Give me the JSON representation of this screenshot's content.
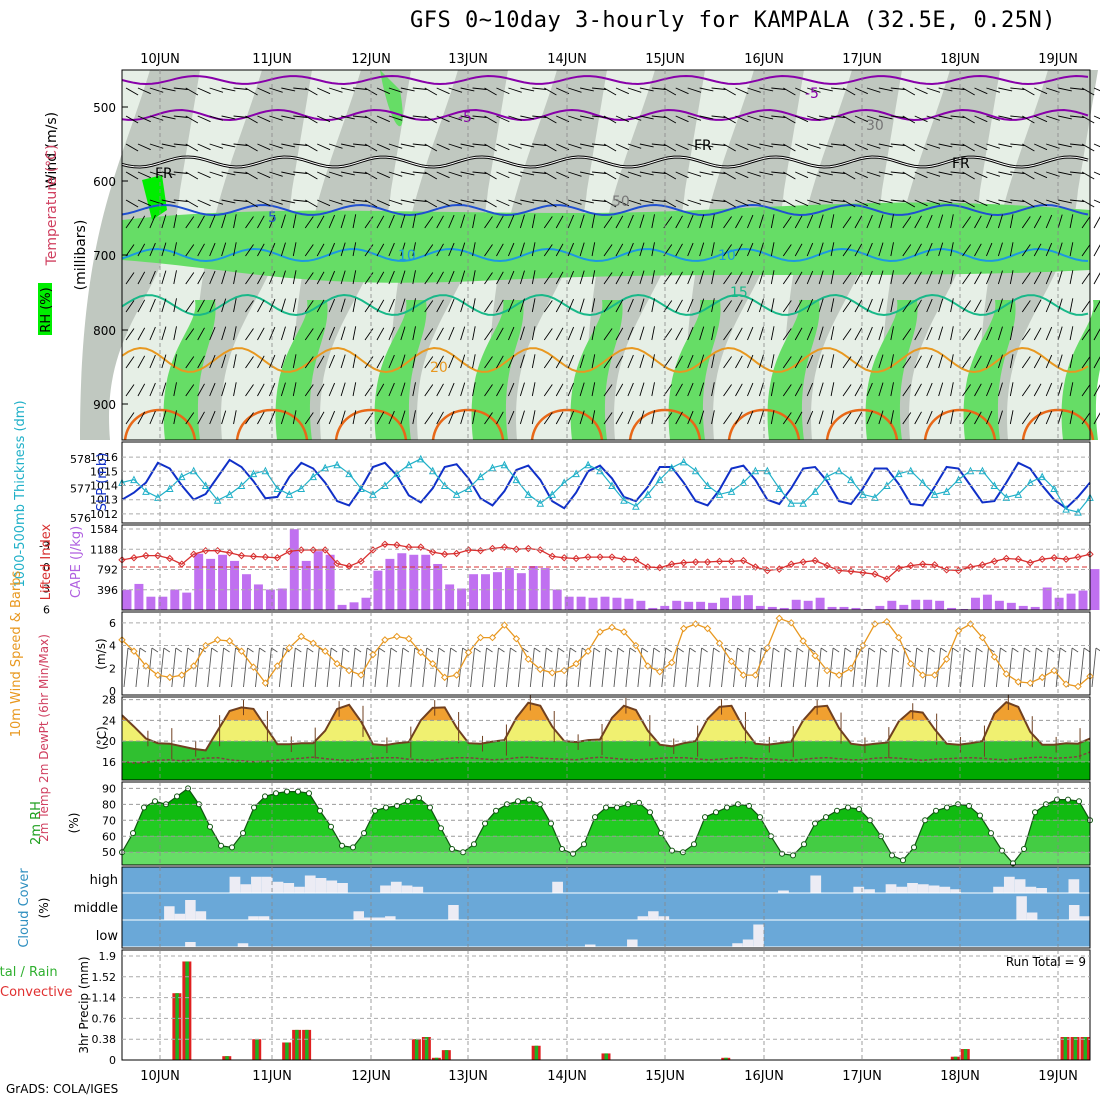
{
  "title": "GFS 0~10day 3-hourly for KAMPALA (32.5E, 0.25N)",
  "credit": "GrADS: COLA/IGES",
  "days": [
    "10JUN",
    "11JUN",
    "12JUN",
    "13JUN",
    "14JUN",
    "15JUN",
    "16JUN",
    "17JUN",
    "18JUN",
    "19JUN"
  ],
  "colors": {
    "rh_dark": "#00ee00",
    "rh_mid": "#66dd66",
    "rh_gray": "#c0c8c0",
    "rh_light": "#e6efe6",
    "temp_m5": "#8800aa",
    "temp_fr": "#000000",
    "temp_p5": "#2050d0",
    "temp_p10": "#1c98e0",
    "temp_p15": "#18b888",
    "temp_p20": "#e89820",
    "temp_p25": "#e86818",
    "slp": "#1030c8",
    "thickness": "#20b0c8",
    "cape_bar": "#c070f0",
    "lifted": "#d83030",
    "wind": "#e89820",
    "barb": "#555555",
    "cloud_bg": "#6aa8d8",
    "cloud_bar": "#ececf4",
    "precip_total": "#e02020",
    "precip_conv": "#20b020",
    "hot": "#f0a030",
    "warm": "#f0f070",
    "rh2m_dark": "#00aa00",
    "rh2m_light": "#66ee66"
  },
  "panels": {
    "upper": {
      "ylabel_wind": "Wind (m/s)",
      "ylabel_temp": "Temperature (°C)",
      "ylabel_rh": "RH (%)",
      "ylabel_axis": "(millibars)",
      "yticks": [
        "500",
        "600",
        "700",
        "800",
        "900"
      ],
      "contour_labels": [
        "-5",
        "-5",
        "FR",
        "FR",
        "FR",
        "-5",
        "5",
        "10",
        "10",
        "15",
        "20",
        "30",
        "50"
      ]
    },
    "slp": {
      "ylabel_thick": "1000-500mb Thickness (dm)",
      "ylabel_slp": "SLP (mb)",
      "left_ticks": [
        "578",
        "577",
        "576"
      ],
      "right_ticks": [
        "1016",
        "1015",
        "1014",
        "1013",
        "1012"
      ]
    },
    "cape": {
      "ylabel_li": "Lifted Index",
      "ylabel_cape": "CAPE (J/kg)",
      "left_ticks": [
        "-3",
        "0",
        "3",
        "6"
      ],
      "right_ticks": [
        "1584",
        "1188",
        "792",
        "396"
      ]
    },
    "wind": {
      "ylabel": "10m Wind Speed & Barbs",
      "unit": "(m/s)",
      "ticks": [
        "6",
        "4",
        "2",
        "0"
      ]
    },
    "temp": {
      "ylabel": "2m Temp 2m DewPt (6hr Min/Max)",
      "unit": "(°C)",
      "ticks": [
        "28",
        "24",
        "20",
        "16"
      ]
    },
    "rh": {
      "ylabel": "2m RH",
      "unit": "(%)",
      "ticks": [
        "90",
        "80",
        "70",
        "60",
        "50"
      ]
    },
    "cloud": {
      "ylabel": "Cloud Cover",
      "unit": "(%)",
      "levels": [
        "high",
        "middle",
        "low"
      ]
    },
    "precip": {
      "ylabel": "3hr Precip (mm)",
      "legend1": "Total / Rain",
      "legend2": "Convective",
      "ticks": [
        "1.9",
        "1.52",
        "1.14",
        "0.76",
        "0.38",
        "0"
      ],
      "run_total": "Run Total = 9"
    }
  },
  "chart_data": [
    {
      "type": "line",
      "name": "SLP (mb)",
      "x_unit": "3-hourly step from 10JUN 00Z",
      "values": [
        1013,
        1013.5,
        1014.2,
        1015.6,
        1015.2,
        1014,
        1013,
        1013.4,
        1014.6,
        1015.8,
        1015.3,
        1014.3,
        1013.1,
        1013.2,
        1014.6,
        1015.6,
        1015.2,
        1014.2,
        1012.9,
        1012.6,
        1013.8,
        1015.3,
        1015.6,
        1014.7,
        1013.3,
        1012.8,
        1013.8,
        1015.3,
        1015.5,
        1014.5,
        1013.1,
        1012.6,
        1013.6,
        1015.1,
        1015.4,
        1014.4,
        1012.9,
        1012.4,
        1013.5,
        1015,
        1015.4,
        1014.5,
        1013.2,
        1012.9,
        1013.9,
        1015.3,
        1015.3,
        1014.2,
        1012.9,
        1012.6,
        1013.7,
        1015.2,
        1015.4,
        1014.4,
        1013,
        1012.7,
        1013.8,
        1015.2,
        1015.3,
        1014.3,
        1012.9,
        1012.7,
        1013.8,
        1015.2,
        1015.2,
        1014.1,
        1012.7,
        1012.6,
        1013.9,
        1015.3,
        1015.2,
        1014,
        1012.8,
        1012.9,
        1014.2,
        1015.6,
        1015.2,
        1014,
        1013,
        1012.4,
        1013.2,
        1014.2
      ]
    },
    {
      "type": "line",
      "name": "1000-500mb Thickness (dm)",
      "values": [
        577.2,
        577.3,
        576.9,
        576.7,
        577,
        577.4,
        577.6,
        577.1,
        576.6,
        576.8,
        577.1,
        577.5,
        577.6,
        577,
        576.8,
        577,
        577.4,
        577.7,
        577.8,
        577.5,
        577,
        576.8,
        577.1,
        577.5,
        577.8,
        578,
        577.6,
        577.1,
        576.8,
        577,
        577.4,
        577.7,
        577.8,
        577.3,
        576.8,
        576.5,
        576.8,
        577.2,
        577.5,
        577.8,
        577.6,
        577.1,
        576.6,
        576.4,
        576.8,
        577.3,
        577.7,
        577.9,
        577.6,
        577.1,
        576.8,
        576.9,
        577.2,
        577.6,
        577.6,
        577,
        576.5,
        576.5,
        576.9,
        577.4,
        577.6,
        577.3,
        576.8,
        576.7,
        577.1,
        577.5,
        577.6,
        577.2,
        576.8,
        576.9,
        577.3,
        577.6,
        577.6,
        577.1,
        576.7,
        576.8,
        577.2,
        577.4,
        577,
        576.3,
        576.2,
        576.7
      ]
    },
    {
      "type": "bar",
      "name": "CAPE (J/kg)",
      "values": [
        396,
        510,
        260,
        260,
        400,
        340,
        1100,
        1000,
        1080,
        960,
        700,
        500,
        400,
        420,
        1580,
        960,
        1150,
        1080,
        100,
        150,
        240,
        770,
        1000,
        1110,
        1080,
        1080,
        900,
        500,
        420,
        700,
        700,
        740,
        820,
        720,
        860,
        820,
        400,
        260,
        260,
        240,
        260,
        240,
        220,
        180,
        40,
        80,
        180,
        160,
        160,
        140,
        240,
        280,
        290,
        80,
        60,
        40,
        200,
        180,
        240,
        60,
        60,
        40,
        20,
        80,
        180,
        100,
        200,
        200,
        180,
        40,
        20,
        240,
        300,
        180,
        140,
        80,
        60,
        440,
        240,
        320,
        380,
        800
      ]
    },
    {
      "type": "line",
      "name": "Lifted Index",
      "values": [
        -1,
        -1.3,
        -1.6,
        -1.6,
        -1.2,
        -0.4,
        -1.8,
        -2.3,
        -2.3,
        -2,
        -1.6,
        -1.5,
        -1.4,
        -1.3,
        -2.2,
        -2.4,
        -2.4,
        -2.4,
        -0.5,
        -0.1,
        -0.8,
        -2.4,
        -3.2,
        -3.1,
        -2.8,
        -2.8,
        -2.1,
        -1.8,
        -1.9,
        -2.4,
        -2.3,
        -2.6,
        -2.8,
        -2.5,
        -2.6,
        -2.4,
        -1.5,
        -1.3,
        -1.2,
        -1.4,
        -1.4,
        -1.4,
        -1.1,
        -1,
        0,
        0.1,
        -0.4,
        -0.6,
        -0.7,
        -0.7,
        -0.8,
        -0.8,
        -0.9,
        0,
        0.5,
        0.3,
        -0.4,
        -0.7,
        -0.9,
        -0.2,
        0.5,
        0.6,
        0.8,
        1,
        1.7,
        0.2,
        -0.2,
        -0.4,
        -0.3,
        0.4,
        0.5,
        0,
        -0.3,
        -0.8,
        -1.2,
        -1.1,
        -0.6,
        -1.1,
        -1.3,
        -1.1,
        -1.4,
        -1.8
      ]
    },
    {
      "type": "line",
      "name": "10m Wind Speed (m/s)",
      "values": [
        4.5,
        3.5,
        2.2,
        1.4,
        1.2,
        1.4,
        2.2,
        4,
        4.5,
        4.4,
        3.5,
        2.1,
        0.7,
        2.2,
        3.8,
        4.8,
        4.2,
        3.5,
        2.4,
        1.8,
        1.4,
        3.2,
        4.5,
        4.8,
        4.6,
        3.4,
        2.4,
        1.2,
        1.4,
        3.4,
        4.7,
        4.7,
        5.8,
        4.6,
        2.8,
        1.9,
        1.6,
        1.8,
        2.4,
        3.5,
        5.2,
        5.6,
        5.2,
        4,
        2.2,
        1.7,
        2.5,
        5.5,
        5.9,
        5.5,
        4.2,
        2.6,
        1.4,
        1.4,
        3.8,
        6.4,
        6,
        4.4,
        3.1,
        1.8,
        1.4,
        2,
        4,
        5.9,
        6.1,
        4.7,
        2.4,
        1.4,
        1.4,
        2.8,
        5.3,
        5.9,
        4.7,
        3,
        1.5,
        0.8,
        0.7,
        1.2,
        1.8,
        0.6,
        0.4,
        1.3
      ]
    },
    {
      "type": "area",
      "name": "2m Temp (°C)",
      "values": [
        25,
        22.8,
        20.5,
        19.6,
        19.5,
        19,
        18.5,
        18.2,
        22,
        25.8,
        26.5,
        26.2,
        22.8,
        19.4,
        19.4,
        19.6,
        19.6,
        22,
        26.2,
        27,
        23.8,
        19.4,
        19.2,
        19.6,
        19.8,
        24,
        26.4,
        26.5,
        22.6,
        19.6,
        19.5,
        19.9,
        20.2,
        24.5,
        27.4,
        26.8,
        22.8,
        20,
        19.8,
        20.2,
        20.3,
        24.5,
        26.8,
        26,
        22,
        19.3,
        19,
        19.6,
        20,
        24.3,
        26.6,
        26.8,
        22.6,
        19.5,
        19.3,
        19.6,
        19.9,
        24,
        26.6,
        26.8,
        22.5,
        19.5,
        19.2,
        19.5,
        19.7,
        23.8,
        25.8,
        25.5,
        22.3,
        19.5,
        19.3,
        19.6,
        20,
        25.3,
        27.5,
        26.6,
        21.8,
        19.3,
        19.3,
        19.6,
        19.5,
        20.5
      ]
    },
    {
      "type": "line",
      "name": "2m DewPt (°C)",
      "values": [
        16,
        15.8,
        15.9,
        16.3,
        16.4,
        16.2,
        16.4,
        16.7,
        16.8,
        16.4,
        16.2,
        16,
        16.1,
        16.3,
        16.5,
        16.7,
        16.9,
        16.6,
        16.4,
        16.3,
        16.5,
        16.7,
        16.8,
        16.8,
        16.5,
        16.4,
        16.3,
        16.6,
        16.8,
        16.8,
        16.6,
        16.4,
        16.5,
        16.8,
        16.9,
        16.7,
        16.6,
        16.5,
        16.4,
        16.7,
        16.9,
        16.7,
        16.5,
        16.4,
        16.5,
        16.7,
        16.8,
        16.8,
        16.6,
        16.4,
        16.5,
        16.7,
        16.8,
        16.6,
        16.6,
        16.4,
        16.3,
        16.5,
        16.7,
        16.8,
        16.6,
        16.4,
        16.4,
        16.7,
        16.8,
        16.7,
        16.5,
        16.3,
        16.5,
        16.6,
        16.7,
        16.8,
        16.7,
        16.5,
        16.4,
        16.6,
        16.8,
        16.9,
        16.7,
        16.8,
        17,
        17.9
      ]
    },
    {
      "type": "area",
      "name": "2m RH (%)",
      "values": [
        50,
        62,
        78,
        82,
        80,
        85,
        90,
        80,
        66,
        54,
        53,
        62,
        78,
        85,
        87,
        88,
        88,
        87,
        76,
        66,
        54,
        53,
        62,
        76,
        78,
        79,
        82,
        84,
        78,
        65,
        52,
        50,
        55,
        68,
        76,
        80,
        82,
        83,
        80,
        68,
        52,
        49,
        55,
        72,
        78,
        78,
        80,
        81,
        75,
        62,
        51,
        50,
        55,
        72,
        75,
        78,
        80,
        79,
        72,
        60,
        49,
        48,
        55,
        68,
        72,
        76,
        78,
        77,
        70,
        60,
        48,
        45,
        53,
        70,
        76,
        78,
        80,
        79,
        73,
        62,
        51,
        43,
        52,
        75,
        80,
        83,
        83,
        82,
        70
      ]
    },
    {
      "type": "bar",
      "name": "Cloud Cover high (%)",
      "values": [
        0,
        0,
        0,
        0,
        0,
        0,
        0,
        0,
        0,
        0,
        65,
        35,
        65,
        65,
        45,
        40,
        25,
        70,
        60,
        50,
        40,
        0,
        0,
        0,
        30,
        45,
        30,
        25,
        0,
        0,
        0,
        0,
        0,
        0,
        0,
        0,
        0,
        0,
        0,
        0,
        45,
        0,
        0,
        0,
        0,
        0,
        0,
        0,
        0,
        0,
        0,
        0,
        0,
        0,
        0,
        0,
        0,
        0,
        0,
        0,
        0,
        10,
        0,
        0,
        70,
        0,
        0,
        0,
        25,
        15,
        0,
        35,
        25,
        40,
        35,
        30,
        25,
        15,
        0,
        0,
        0,
        25,
        65,
        55,
        25,
        20,
        0,
        0,
        55,
        0
      ]
    },
    {
      "type": "bar",
      "name": "Cloud Cover middle (%)",
      "values": [
        0,
        0,
        0,
        0,
        55,
        25,
        80,
        35,
        0,
        0,
        0,
        0,
        15,
        15,
        0,
        0,
        0,
        0,
        0,
        0,
        0,
        0,
        35,
        10,
        10,
        15,
        0,
        0,
        0,
        0,
        0,
        60,
        0,
        0,
        0,
        0,
        0,
        0,
        0,
        0,
        0,
        0,
        0,
        0,
        0,
        0,
        0,
        0,
        0,
        15,
        35,
        15,
        0,
        0,
        0,
        0,
        0,
        0,
        0,
        0,
        0,
        0,
        0,
        0,
        0,
        0,
        0,
        0,
        0,
        0,
        0,
        0,
        0,
        0,
        0,
        0,
        0,
        0,
        0,
        0,
        0,
        0,
        0,
        0,
        0,
        95,
        30,
        0,
        0,
        0,
        60,
        15
      ]
    },
    {
      "type": "bar",
      "name": "Cloud Cover low (%)",
      "values": [
        0,
        0,
        0,
        0,
        0,
        0,
        20,
        0,
        0,
        0,
        0,
        15,
        0,
        0,
        0,
        0,
        0,
        0,
        0,
        0,
        0,
        0,
        0,
        0,
        0,
        0,
        0,
        0,
        0,
        0,
        0,
        0,
        0,
        0,
        0,
        0,
        0,
        0,
        0,
        0,
        0,
        0,
        0,
        0,
        10,
        0,
        0,
        0,
        30,
        0,
        0,
        0,
        0,
        0,
        0,
        0,
        0,
        0,
        15,
        30,
        90,
        0,
        0,
        0,
        0,
        0,
        0,
        0,
        0,
        0,
        0,
        0,
        0,
        0,
        0,
        0,
        0,
        0,
        0,
        0,
        0,
        0,
        0,
        0,
        0,
        0,
        0,
        0,
        0,
        0,
        0,
        0
      ]
    },
    {
      "type": "bar",
      "name": "3hr Precip (mm)",
      "values": [
        0,
        0,
        0,
        0,
        0,
        1.22,
        1.8,
        0,
        0,
        0,
        0.07,
        0,
        0,
        0.38,
        0,
        0,
        0.32,
        0.55,
        0.55,
        0,
        0,
        0,
        0,
        0,
        0,
        0,
        0,
        0,
        0,
        0.38,
        0.42,
        0.04,
        0.18,
        0,
        0,
        0,
        0,
        0,
        0,
        0,
        0,
        0.26,
        0,
        0,
        0,
        0,
        0,
        0,
        0.12,
        0,
        0,
        0,
        0,
        0,
        0,
        0,
        0,
        0,
        0,
        0,
        0.04,
        0,
        0,
        0,
        0,
        0,
        0,
        0,
        0,
        0,
        0,
        0,
        0,
        0,
        0,
        0,
        0,
        0,
        0,
        0,
        0,
        0,
        0,
        0.06,
        0.2,
        0,
        0,
        0,
        0,
        0,
        0,
        0,
        0,
        0,
        0.42,
        0.42,
        0.42
      ]
    }
  ]
}
